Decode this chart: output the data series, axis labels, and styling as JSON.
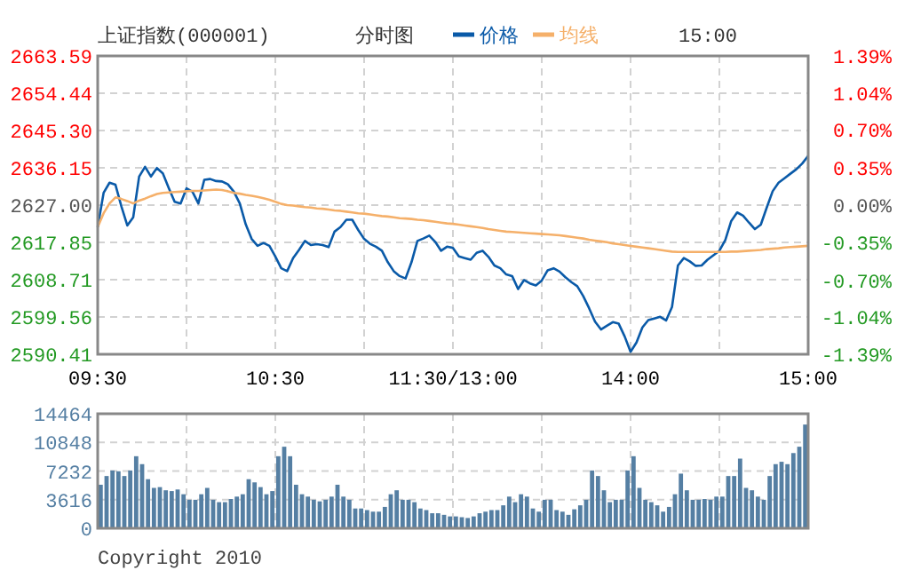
{
  "chart_data": [
    {
      "type": "line",
      "title": "上证指数(000001)",
      "subtitle": "分时图",
      "annotations": [
        "15:00"
      ],
      "legend": "top",
      "grid": true,
      "categories": [
        "09:30",
        null,
        null,
        null,
        null,
        null,
        null,
        null,
        null,
        null,
        null,
        null,
        null,
        null,
        null,
        null,
        null,
        null,
        null,
        null,
        null,
        null,
        null,
        null,
        null,
        null,
        null,
        null,
        null,
        null,
        "10:30",
        null,
        null,
        null,
        null,
        null,
        null,
        null,
        null,
        null,
        null,
        null,
        null,
        null,
        null,
        null,
        null,
        null,
        null,
        null,
        null,
        null,
        null,
        null,
        null,
        null,
        null,
        null,
        null,
        null,
        "11:30/13:00",
        null,
        null,
        null,
        null,
        null,
        null,
        null,
        null,
        null,
        null,
        null,
        null,
        null,
        null,
        null,
        null,
        null,
        null,
        null,
        null,
        null,
        null,
        null,
        null,
        null,
        null,
        null,
        null,
        null,
        "14:00",
        null,
        null,
        null,
        null,
        null,
        null,
        null,
        null,
        null,
        null,
        null,
        null,
        null,
        null,
        null,
        null,
        null,
        null,
        null,
        null,
        null,
        null,
        null,
        null,
        null,
        null,
        null,
        null,
        null,
        "15:00"
      ],
      "ylim": [
        2590.41,
        2663.59
      ],
      "yticks": [
        2590.41,
        2599.56,
        2608.71,
        2617.85,
        {
          "value": 2627,
          "label": "2627.00"
        },
        2636.15,
        {
          "value": 2645.3,
          "label": "2645.30"
        },
        2654.44,
        2663.59
      ],
      "y2lim": [
        -1.39,
        1.39
      ],
      "y2ticks": [
        {
          "value": -1.39,
          "label": "-1.39%"
        },
        {
          "value": -1.04,
          "label": "-1.04%"
        },
        {
          "value": -0.7,
          "label": "-0.70%"
        },
        {
          "value": -0.35,
          "label": "-0.35%"
        },
        {
          "value": 0,
          "label": "0.00%"
        },
        {
          "value": 0.35,
          "label": "0.35%"
        },
        {
          "value": 0.7,
          "label": "0.70%"
        },
        {
          "value": 1.04,
          "label": "1.04%"
        },
        {
          "value": 1.39,
          "label": "1.39%"
        }
      ],
      "series": [
        {
          "type": "line",
          "name": "价格",
          "color": "#0a5aa8",
          "values": [
            2621.6,
            2630.0,
            2632.5,
            2632.0,
            2626.7,
            2622.0,
            2624.0,
            2634.0,
            2636.4,
            2634.0,
            2636.1,
            2634.8,
            2631.2,
            2627.8,
            2627.4,
            2631.1,
            2630.3,
            2627.4,
            2633.2,
            2633.4,
            2632.9,
            2632.8,
            2632.1,
            2630.3,
            2627.4,
            2622.3,
            2618.7,
            2617.0,
            2617.7,
            2617.0,
            2614.4,
            2611.5,
            2610.8,
            2614.0,
            2616.0,
            2618.2,
            2617.2,
            2617.4,
            2617.2,
            2616.7,
            2620.5,
            2621.6,
            2623.4,
            2623.4,
            2620.9,
            2618.7,
            2617.5,
            2616.8,
            2615.8,
            2613.0,
            2610.8,
            2609.6,
            2609.0,
            2613.0,
            2618.2,
            2618.8,
            2619.5,
            2618.0,
            2615.8,
            2616.8,
            2616.5,
            2614.4,
            2614.0,
            2613.6,
            2615.3,
            2615.8,
            2614.3,
            2612.2,
            2611.5,
            2610.0,
            2609.6,
            2606.4,
            2608.6,
            2607.8,
            2607.3,
            2608.5,
            2611.0,
            2611.5,
            2610.7,
            2609.3,
            2608.1,
            2607.1,
            2604.7,
            2601.7,
            2598.4,
            2596.5,
            2597.4,
            2598.3,
            2597.9,
            2594.8,
            2591.0,
            2593.3,
            2597.0,
            2598.8,
            2599.2,
            2599.6,
            2598.7,
            2602.0,
            2612.2,
            2614.0,
            2613.2,
            2612.1,
            2612.2,
            2613.6,
            2614.7,
            2615.8,
            2618.4,
            2623.1,
            2625.2,
            2624.4,
            2622.7,
            2621.1,
            2622.2,
            2626.4,
            2630.4,
            2632.5,
            2633.6,
            2634.7,
            2635.8,
            2637.2,
            2639.1
          ]
        },
        {
          "type": "line",
          "name": "均线",
          "color": "#f5b06a",
          "values": [
            2621.6,
            2625.0,
            2627.4,
            2628.9,
            2628.5,
            2628.0,
            2627.4,
            2628.1,
            2628.6,
            2629.2,
            2629.7,
            2630.0,
            2630.1,
            2630.2,
            2630.3,
            2630.4,
            2630.5,
            2630.5,
            2630.6,
            2630.7,
            2630.8,
            2630.7,
            2630.4,
            2630.0,
            2629.8,
            2629.5,
            2629.3,
            2629.0,
            2628.7,
            2628.3,
            2627.8,
            2627.3,
            2627.0,
            2626.9,
            2626.7,
            2626.5,
            2626.4,
            2626.2,
            2626.1,
            2625.9,
            2625.7,
            2625.6,
            2625.4,
            2625.2,
            2625.0,
            2624.9,
            2624.7,
            2624.5,
            2624.3,
            2624.2,
            2624.0,
            2623.8,
            2623.7,
            2623.6,
            2623.4,
            2623.3,
            2623.1,
            2622.9,
            2622.7,
            2622.5,
            2622.4,
            2622.2,
            2622.0,
            2621.8,
            2621.6,
            2621.4,
            2621.1,
            2620.9,
            2620.7,
            2620.5,
            2620.4,
            2620.3,
            2620.2,
            2620.1,
            2620.0,
            2619.9,
            2619.8,
            2619.7,
            2619.6,
            2619.4,
            2619.2,
            2619.0,
            2618.8,
            2618.5,
            2618.3,
            2618.1,
            2617.9,
            2617.6,
            2617.4,
            2617.2,
            2617.0,
            2616.8,
            2616.6,
            2616.4,
            2616.2,
            2616.0,
            2615.8,
            2615.6,
            2615.5,
            2615.5,
            2615.5,
            2615.5,
            2615.5,
            2615.5,
            2615.5,
            2615.5,
            2615.5,
            2615.6,
            2615.6,
            2615.7,
            2615.8,
            2615.9,
            2616.0,
            2616.2,
            2616.3,
            2616.4,
            2616.6,
            2616.7,
            2616.8,
            2616.9,
            2617.0
          ]
        }
      ]
    },
    {
      "type": "bar",
      "color": "#557fa3",
      "grid": true,
      "tick_labels": "y",
      "annotations": [
        "Copyright 2010"
      ],
      "ylim": [
        0,
        14464
      ],
      "yticks": [
        0,
        3616,
        7232,
        10848,
        14464
      ],
      "values": [
        5500,
        6600,
        7300,
        7200,
        6600,
        7300,
        9100,
        8100,
        6200,
        5100,
        5200,
        4800,
        4700,
        4900,
        4300,
        3600,
        3600,
        4300,
        5100,
        3600,
        3300,
        3300,
        3700,
        4000,
        4300,
        6200,
        5800,
        5200,
        4300,
        4700,
        9100,
        10300,
        9100,
        5500,
        4300,
        4000,
        3600,
        3400,
        3600,
        4000,
        5500,
        4000,
        3600,
        2500,
        2500,
        2300,
        2100,
        2100,
        2700,
        4300,
        4800,
        3600,
        3600,
        3300,
        2500,
        2300,
        1900,
        1900,
        1700,
        1500,
        1500,
        1400,
        1300,
        1500,
        1900,
        2100,
        2300,
        2300,
        2900,
        4000,
        3300,
        4300,
        4000,
        2500,
        2100,
        3600,
        3600,
        2300,
        2100,
        1700,
        2400,
        2900,
        3600,
        7300,
        6600,
        4800,
        3300,
        3600,
        3600,
        7300,
        9100,
        5100,
        3600,
        3300,
        2900,
        2100,
        2700,
        4300,
        6900,
        4800,
        3600,
        3600,
        3700,
        3600,
        4000,
        4000,
        6600,
        6600,
        8800,
        5100,
        4800,
        4000,
        3600,
        6600,
        8100,
        8400,
        8100,
        9500,
        10300,
        13100,
        null
      ]
    }
  ]
}
